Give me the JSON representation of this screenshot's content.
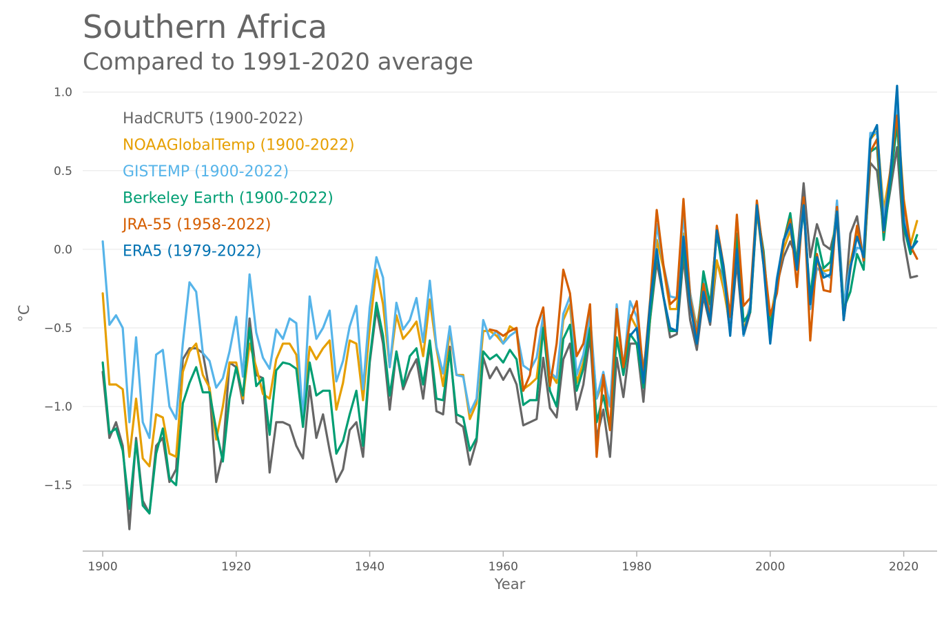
{
  "title": "Southern Africa",
  "subtitle": "Compared to 1991-2020 average",
  "chart_data": {
    "type": "line",
    "title": "Southern Africa",
    "subtitle": "Compared to 1991-2020 average",
    "xlabel": "Year",
    "ylabel": "°C",
    "xlim": [
      1897,
      2025
    ],
    "ylim": [
      -1.92,
      1.06
    ],
    "xticks": [
      1900,
      1920,
      1940,
      1960,
      1980,
      2000,
      2020
    ],
    "xtick_labels": [
      "1900",
      "1920",
      "1940",
      "1960",
      "1980",
      "2000",
      "2020"
    ],
    "yticks": [
      1.0,
      0.5,
      0.0,
      -0.5,
      -1.0,
      -1.5
    ],
    "ytick_labels": [
      "1.0",
      "0.5",
      "0.0",
      "−0.5",
      "−1.0",
      "−1.5"
    ],
    "grid": true,
    "legend_position": "top-left",
    "series": [
      {
        "name": "HadCRUT5 (1900-2022)",
        "color": "#666666",
        "start_year": 1900,
        "values": [
          -0.78,
          -1.2,
          -1.1,
          -1.25,
          -1.78,
          -1.2,
          -1.6,
          -1.68,
          -1.25,
          -1.2,
          -1.48,
          -1.4,
          -0.7,
          -0.63,
          -0.63,
          -0.66,
          -0.9,
          -1.48,
          -1.3,
          -0.72,
          -0.75,
          -0.98,
          -0.44,
          -0.8,
          -0.82,
          -1.42,
          -1.1,
          -1.1,
          -1.12,
          -1.25,
          -1.33,
          -0.87,
          -1.2,
          -1.05,
          -1.28,
          -1.48,
          -1.4,
          -1.15,
          -1.1,
          -1.32,
          -0.72,
          -0.38,
          -0.6,
          -1.02,
          -0.65,
          -0.89,
          -0.78,
          -0.7,
          -0.95,
          -0.6,
          -1.03,
          -1.05,
          -0.62,
          -1.1,
          -1.13,
          -1.37,
          -1.22,
          -0.69,
          -0.82,
          -0.75,
          -0.83,
          -0.76,
          -0.86,
          -1.12,
          -1.1,
          -1.08,
          -0.69,
          -1.01,
          -1.07,
          -0.7,
          -0.6,
          -1.02,
          -0.86,
          -0.55,
          -1.2,
          -1.02,
          -1.32,
          -0.69,
          -0.94,
          -0.6,
          -0.6,
          -0.97,
          -0.45,
          -0.08,
          -0.3,
          -0.56,
          -0.54,
          -0.05,
          -0.45,
          -0.64,
          -0.3,
          -0.48,
          -0.08,
          -0.2,
          -0.53,
          -0.08,
          -0.55,
          -0.4,
          0.24,
          -0.05,
          -0.46,
          -0.23,
          -0.05,
          0.05,
          -0.06,
          0.42,
          -0.05,
          0.16,
          0.03,
          0.0,
          0.18,
          -0.42,
          0.1,
          0.21,
          -0.08,
          0.55,
          0.5,
          0.12,
          0.38,
          0.65,
          0.06,
          -0.18,
          -0.17
        ]
      },
      {
        "name": "NOAAGlobalTemp (1900-2022)",
        "color": "#E69F00",
        "start_year": 1900,
        "values": [
          -0.28,
          -0.86,
          -0.86,
          -0.89,
          -1.32,
          -0.95,
          -1.33,
          -1.38,
          -1.05,
          -1.07,
          -1.3,
          -1.32,
          -0.78,
          -0.65,
          -0.6,
          -0.8,
          -0.88,
          -1.21,
          -1.0,
          -0.72,
          -0.72,
          -0.95,
          -0.6,
          -0.75,
          -0.92,
          -0.95,
          -0.7,
          -0.6,
          -0.6,
          -0.67,
          -1.05,
          -0.62,
          -0.7,
          -0.63,
          -0.58,
          -1.02,
          -0.85,
          -0.58,
          -0.6,
          -0.96,
          -0.5,
          -0.13,
          -0.35,
          -0.75,
          -0.42,
          -0.57,
          -0.52,
          -0.46,
          -0.68,
          -0.32,
          -0.63,
          -0.87,
          -0.52,
          -0.8,
          -0.8,
          -1.08,
          -0.98,
          -0.52,
          -0.52,
          -0.55,
          -0.6,
          -0.49,
          -0.52,
          -0.89,
          -0.86,
          -0.82,
          -0.48,
          -0.78,
          -0.85,
          -0.45,
          -0.35,
          -0.85,
          -0.72,
          -0.45,
          -0.95,
          -0.84,
          -1.0,
          -0.41,
          -0.77,
          -0.42,
          -0.5,
          -0.85,
          -0.45,
          0.06,
          -0.12,
          -0.38,
          -0.38,
          0.1,
          -0.28,
          -0.5,
          -0.22,
          -0.42,
          -0.07,
          -0.25,
          -0.49,
          0.0,
          -0.52,
          -0.35,
          0.25,
          -0.1,
          -0.45,
          -0.21,
          0.0,
          0.12,
          -0.12,
          0.28,
          -0.35,
          -0.08,
          -0.14,
          -0.13,
          0.3,
          -0.42,
          -0.08,
          0.1,
          -0.03,
          0.7,
          0.75,
          0.25,
          0.5,
          0.9,
          0.32,
          0.03,
          0.18
        ]
      },
      {
        "name": "GISTEMP (1900-2022)",
        "color": "#56B4E9",
        "start_year": 1900,
        "values": [
          0.05,
          -0.48,
          -0.42,
          -0.5,
          -1.1,
          -0.56,
          -1.1,
          -1.2,
          -0.67,
          -0.64,
          -1.0,
          -1.08,
          -0.6,
          -0.21,
          -0.27,
          -0.66,
          -0.71,
          -0.88,
          -0.82,
          -0.65,
          -0.43,
          -0.81,
          -0.16,
          -0.53,
          -0.69,
          -0.76,
          -0.51,
          -0.57,
          -0.44,
          -0.47,
          -1.08,
          -0.3,
          -0.57,
          -0.5,
          -0.39,
          -0.84,
          -0.71,
          -0.49,
          -0.36,
          -0.89,
          -0.37,
          -0.05,
          -0.18,
          -0.75,
          -0.34,
          -0.51,
          -0.45,
          -0.31,
          -0.59,
          -0.2,
          -0.62,
          -0.79,
          -0.49,
          -0.8,
          -0.81,
          -1.04,
          -0.95,
          -0.45,
          -0.57,
          -0.52,
          -0.6,
          -0.55,
          -0.52,
          -0.74,
          -0.77,
          -0.69,
          -0.42,
          -0.78,
          -0.82,
          -0.41,
          -0.3,
          -0.8,
          -0.67,
          -0.42,
          -0.95,
          -0.78,
          -1.0,
          -0.35,
          -0.76,
          -0.33,
          -0.43,
          -0.76,
          -0.43,
          0.16,
          -0.1,
          -0.3,
          -0.31,
          0.22,
          -0.28,
          -0.53,
          -0.19,
          -0.38,
          0.13,
          -0.2,
          -0.45,
          0.05,
          -0.55,
          -0.35,
          0.28,
          -0.08,
          -0.55,
          -0.18,
          0.05,
          0.15,
          -0.12,
          0.32,
          -0.38,
          -0.12,
          -0.15,
          -0.18,
          0.31,
          -0.35,
          -0.1,
          0.01,
          0.0,
          0.74,
          0.74,
          0.2,
          0.46,
          0.97,
          0.2,
          -0.01,
          0.05
        ]
      },
      {
        "name": "Berkeley Earth (1900-2022)",
        "color": "#009E73",
        "start_year": 1900,
        "values": [
          -0.72,
          -1.17,
          -1.14,
          -1.28,
          -1.65,
          -1.22,
          -1.63,
          -1.68,
          -1.3,
          -1.14,
          -1.46,
          -1.5,
          -0.98,
          -0.85,
          -0.75,
          -0.91,
          -0.91,
          -1.15,
          -1.35,
          -0.95,
          -0.75,
          -0.93,
          -0.5,
          -0.87,
          -0.82,
          -1.18,
          -0.77,
          -0.72,
          -0.73,
          -0.76,
          -1.13,
          -0.72,
          -0.93,
          -0.9,
          -0.9,
          -1.3,
          -1.22,
          -1.05,
          -0.9,
          -1.25,
          -0.7,
          -0.34,
          -0.55,
          -0.93,
          -0.65,
          -0.87,
          -0.68,
          -0.63,
          -0.86,
          -0.58,
          -0.95,
          -0.96,
          -0.65,
          -1.05,
          -1.07,
          -1.28,
          -1.2,
          -0.65,
          -0.7,
          -0.67,
          -0.72,
          -0.64,
          -0.7,
          -0.99,
          -0.96,
          -0.96,
          -0.5,
          -0.9,
          -1.0,
          -0.57,
          -0.48,
          -0.9,
          -0.76,
          -0.5,
          -1.1,
          -0.93,
          -1.15,
          -0.56,
          -0.8,
          -0.54,
          -0.6,
          -0.88,
          -0.44,
          -0.01,
          -0.3,
          -0.52,
          -0.52,
          0.02,
          -0.35,
          -0.58,
          -0.14,
          -0.35,
          0.1,
          -0.16,
          -0.42,
          0.1,
          -0.46,
          -0.4,
          0.26,
          -0.01,
          -0.5,
          -0.23,
          0.05,
          0.23,
          -0.1,
          0.25,
          -0.31,
          0.07,
          -0.12,
          -0.08,
          0.22,
          -0.38,
          -0.27,
          -0.03,
          -0.13,
          0.62,
          0.65,
          0.06,
          0.43,
          0.8,
          0.14,
          -0.03,
          0.09
        ]
      },
      {
        "name": "JRA-55 (1958-2022)",
        "color": "#D55E00",
        "start_year": 1958,
        "values": [
          -0.51,
          -0.52,
          -0.55,
          -0.52,
          -0.5,
          -0.9,
          -0.8,
          -0.5,
          -0.37,
          -0.87,
          -0.6,
          -0.13,
          -0.28,
          -0.68,
          -0.6,
          -0.35,
          -1.32,
          -0.8,
          -1.15,
          -0.38,
          -0.75,
          -0.45,
          -0.33,
          -0.8,
          -0.33,
          0.25,
          -0.1,
          -0.35,
          -0.31,
          0.32,
          -0.31,
          -0.55,
          -0.22,
          -0.43,
          0.15,
          -0.1,
          -0.43,
          0.22,
          -0.36,
          -0.31,
          0.31,
          -0.05,
          -0.42,
          -0.28,
          0.05,
          0.19,
          -0.24,
          0.33,
          -0.58,
          -0.03,
          -0.26,
          -0.27,
          0.27,
          -0.45,
          -0.13,
          0.15,
          -0.07,
          0.62,
          0.7,
          0.11,
          0.51,
          0.85,
          0.3,
          0.02,
          -0.06
        ]
      },
      {
        "name": "ERA5 (1979-2022)",
        "color": "#0072B2",
        "start_year": 1979,
        "values": [
          -0.55,
          -0.5,
          -0.85,
          -0.35,
          0.0,
          -0.3,
          -0.5,
          -0.52,
          0.08,
          -0.35,
          -0.6,
          -0.27,
          -0.46,
          0.12,
          -0.11,
          -0.55,
          0.0,
          -0.54,
          -0.38,
          0.28,
          -0.1,
          -0.6,
          -0.2,
          0.06,
          0.16,
          -0.13,
          0.28,
          -0.35,
          -0.05,
          -0.18,
          -0.16,
          0.24,
          -0.45,
          -0.12,
          0.08,
          -0.05,
          0.7,
          0.79,
          0.12,
          0.47,
          1.04,
          0.17,
          0.0,
          0.05
        ]
      }
    ]
  }
}
